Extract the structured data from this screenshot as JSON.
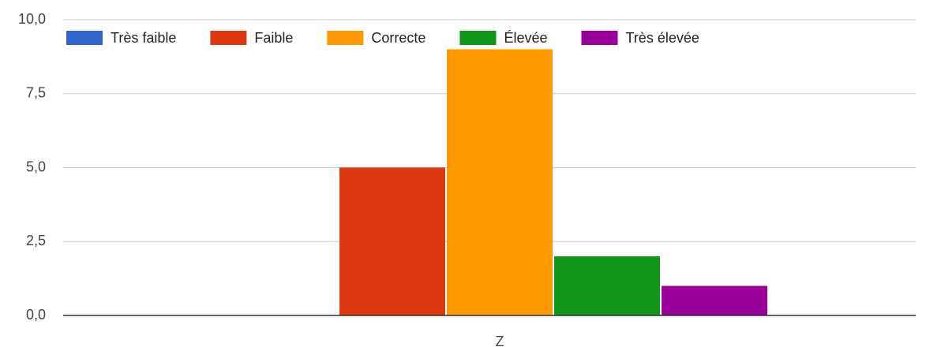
{
  "chart_data": {
    "type": "bar",
    "categories": [
      "Z"
    ],
    "series": [
      {
        "name": "Très faible",
        "color": "#3366cc",
        "values": [
          0
        ]
      },
      {
        "name": "Faible",
        "color": "#dc3912",
        "values": [
          5
        ]
      },
      {
        "name": "Correcte",
        "color": "#ff9900",
        "values": [
          9
        ]
      },
      {
        "name": "Élevée",
        "color": "#109618",
        "values": [
          2
        ]
      },
      {
        "name": "Très élevée",
        "color": "#990099",
        "values": [
          1
        ]
      }
    ],
    "ylim": [
      0,
      10
    ],
    "yticks": [
      {
        "value": 0,
        "label": "0,0"
      },
      {
        "value": 2.5,
        "label": "2,5"
      },
      {
        "value": 5,
        "label": "5,0"
      },
      {
        "value": 7.5,
        "label": "7,5"
      },
      {
        "value": 10,
        "label": "10,0"
      }
    ],
    "grid": true,
    "legend": "top"
  }
}
